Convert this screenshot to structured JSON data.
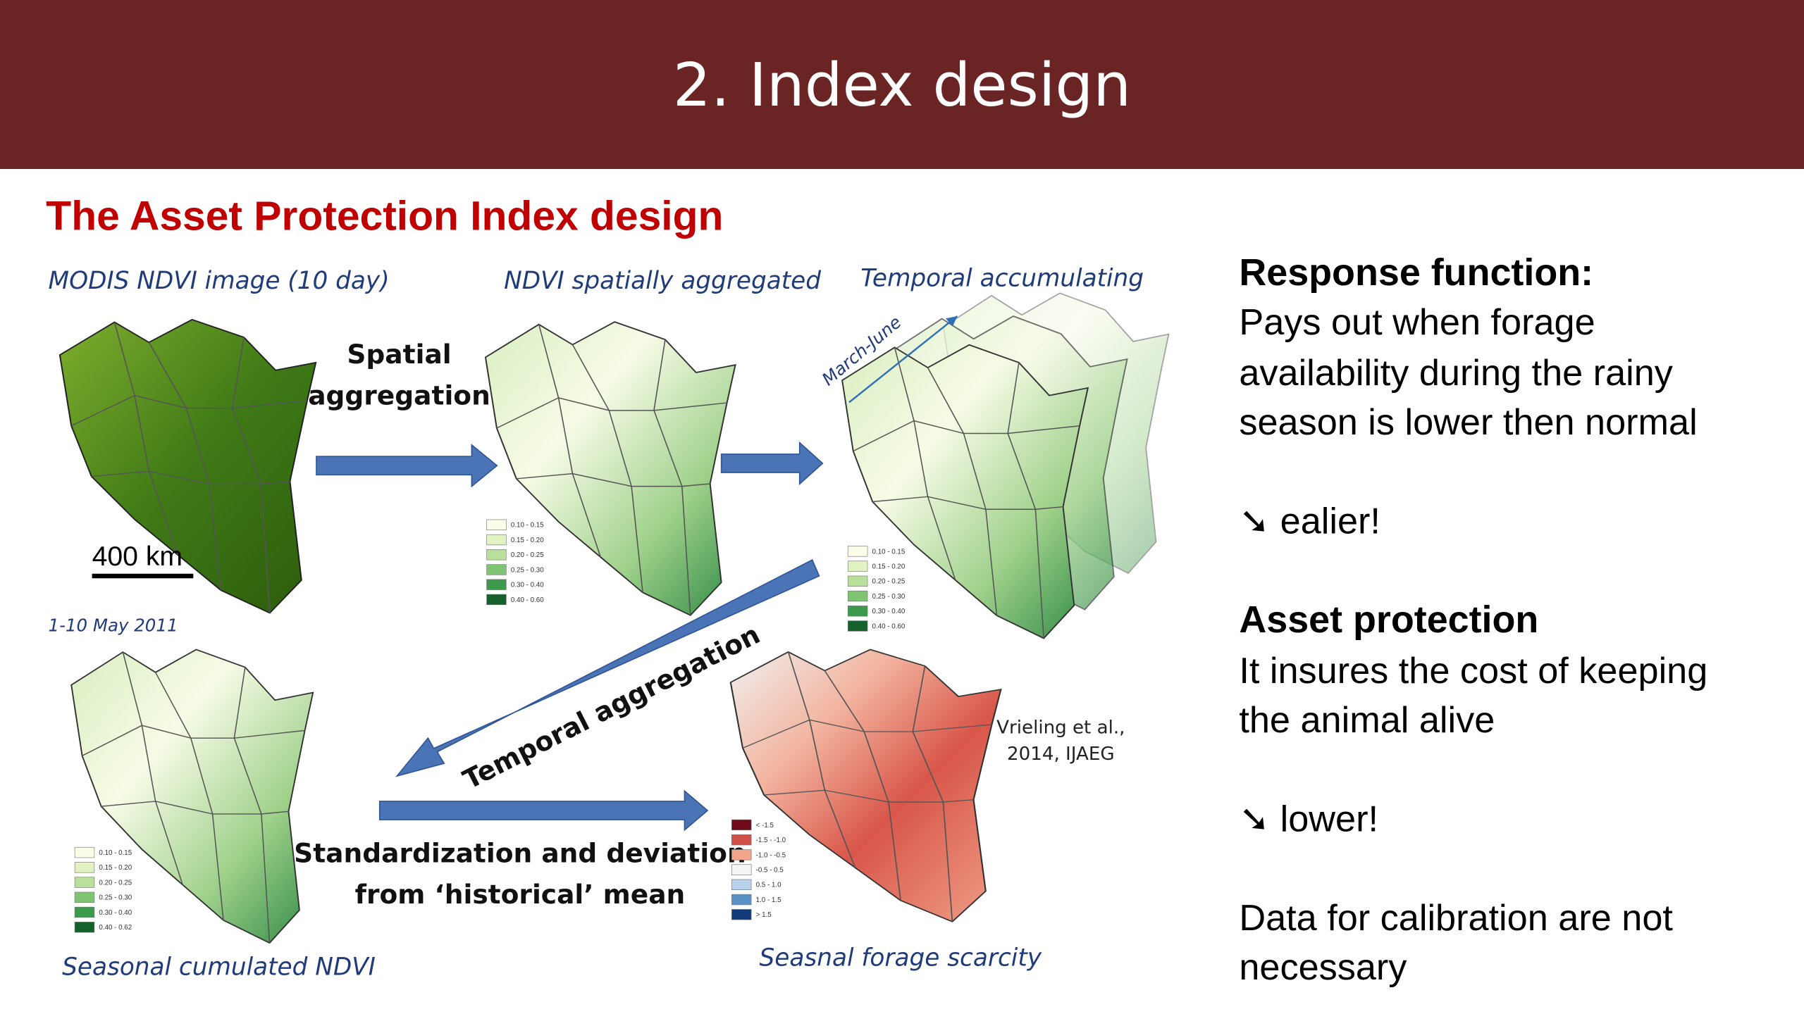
{
  "header": {
    "title": "2. Index design"
  },
  "subtitle": "The Asset Protection Index design",
  "figure": {
    "captions": {
      "modis": "MODIS NDVI image (10 day)",
      "aggregated": "NDVI spatially aggregated",
      "accumulating": "Temporal accumulating",
      "date": "1-10 May 2011",
      "cumulated": "Seasonal cumulated NDVI",
      "scarcity": "Seasnal forage scarcity",
      "period": "March-June",
      "scale": "400 km"
    },
    "steps": {
      "spatial": [
        "Spatial",
        "aggregation"
      ],
      "temporal": "Temporal aggregation",
      "standardization": [
        "Standardization and deviation",
        "from ‘historical’ mean"
      ]
    },
    "citation": [
      "Vrieling et al.,",
      "2014, IJAEG"
    ],
    "legends": [
      [
        "0.10 - 0.15",
        "0.15 - 0.20",
        "0.20 - 0.25",
        "0.25 - 0.30",
        "0.30 - 0.40",
        "0.40 - 0.60"
      ],
      [
        "0.10 - 0.15",
        "0.15 - 0.20",
        "0.20 - 0.25",
        "0.25 - 0.30",
        "0.30 - 0.40",
        "0.40 - 0.60"
      ],
      [
        "0.10 - 0.15",
        "0.15 - 0.20",
        "0.20 - 0.25",
        "0.25 - 0.30",
        "0.30 - 0.40",
        "0.40 - 0.62"
      ],
      [
        "< -1.5",
        "-1.5 - -1.0",
        "-1.0 - -0.5",
        "-0.5 - 0.5",
        "0.5 - 1.0",
        "1.0 - 1.5",
        "> 1.5"
      ]
    ]
  },
  "panel": {
    "response_heading": "Response function:",
    "response_text": [
      "Pays out when forage",
      "availability during the rainy",
      "season is lower then normal"
    ],
    "response_note": "➘ ealier!",
    "asset_heading": "Asset protection",
    "asset_text": [
      "It insures the cost of  keeping",
      "the animal alive"
    ],
    "asset_note": "➘ lower!",
    "calibration": [
      "Data for calibration are not",
      "necessary"
    ]
  }
}
